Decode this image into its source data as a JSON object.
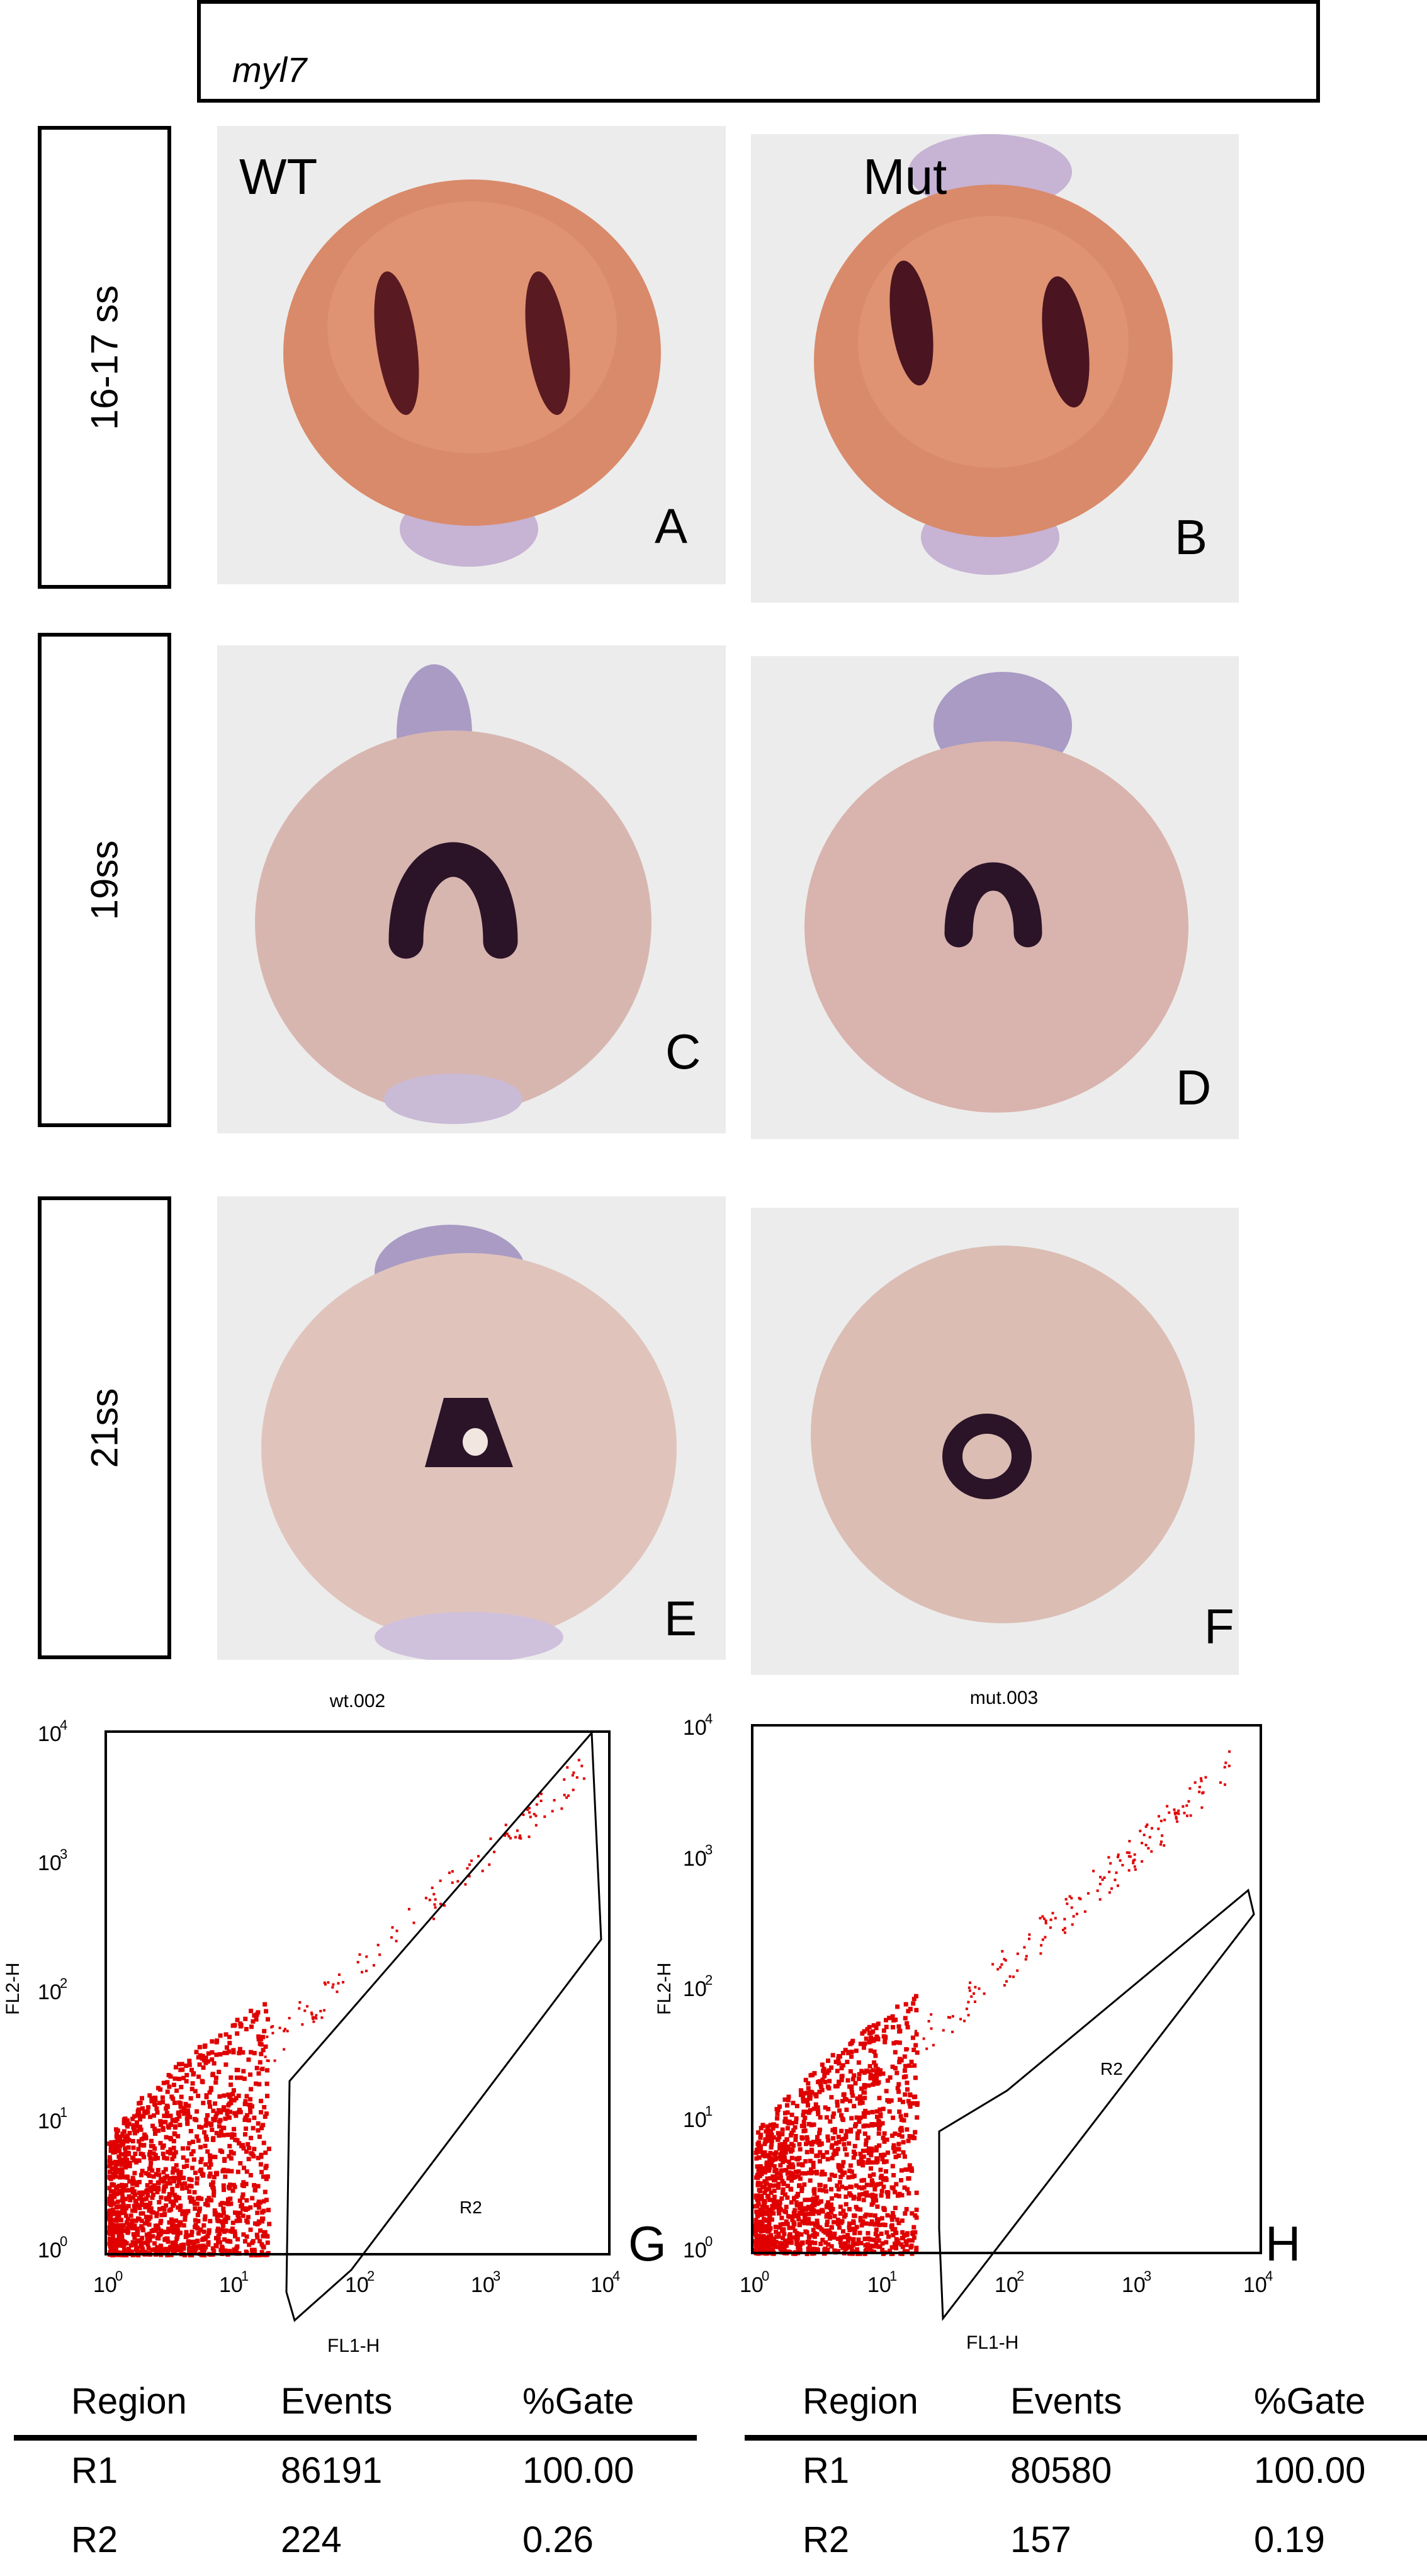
{
  "gene": "myl7",
  "stages": [
    "16-17 ss",
    "19ss",
    "21ss"
  ],
  "genotypes": {
    "wt": "WT",
    "mut": "Mut"
  },
  "panel_letters": {
    "A": "A",
    "B": "B",
    "C": "C",
    "D": "D",
    "E": "E",
    "F": "F",
    "G": "G",
    "H": "H"
  },
  "colors": {
    "embryo_early": "#d98a6a",
    "embryo_late": "#d8b6b0",
    "stain": "#2b1428",
    "scatter": "#e00000"
  },
  "flow": [
    {
      "title": "wt.002",
      "xlabel": "FL1-H",
      "ylabel": "FL2-H",
      "gate_label": "R2",
      "ticks": {
        "x": [
          "10",
          "10",
          "10",
          "10",
          "10"
        ],
        "x_exp": [
          "0",
          "1",
          "2",
          "3",
          "4"
        ],
        "y": [
          "10",
          "10",
          "10",
          "10",
          "10"
        ],
        "y_exp": [
          "0",
          "1",
          "2",
          "3",
          "4"
        ]
      },
      "table": {
        "headers": [
          "Region",
          "Events",
          "%Gate"
        ],
        "rows": [
          [
            "R1",
            "86191",
            "100.00"
          ],
          [
            "R2",
            "224",
            "0.26"
          ]
        ]
      }
    },
    {
      "title": "mut.003",
      "xlabel": "FL1-H",
      "ylabel": "FL2-H",
      "gate_label": "R2",
      "ticks": {
        "x": [
          "10",
          "10",
          "10",
          "10",
          "10"
        ],
        "x_exp": [
          "0",
          "1",
          "2",
          "3",
          "4"
        ],
        "y": [
          "10",
          "10",
          "10",
          "10",
          "10"
        ],
        "y_exp": [
          "0",
          "1",
          "2",
          "3",
          "4"
        ]
      },
      "table": {
        "headers": [
          "Region",
          "Events",
          "%Gate"
        ],
        "rows": [
          [
            "R1",
            "80580",
            "100.00"
          ],
          [
            "R2",
            "157",
            "0.19"
          ]
        ]
      }
    }
  ]
}
